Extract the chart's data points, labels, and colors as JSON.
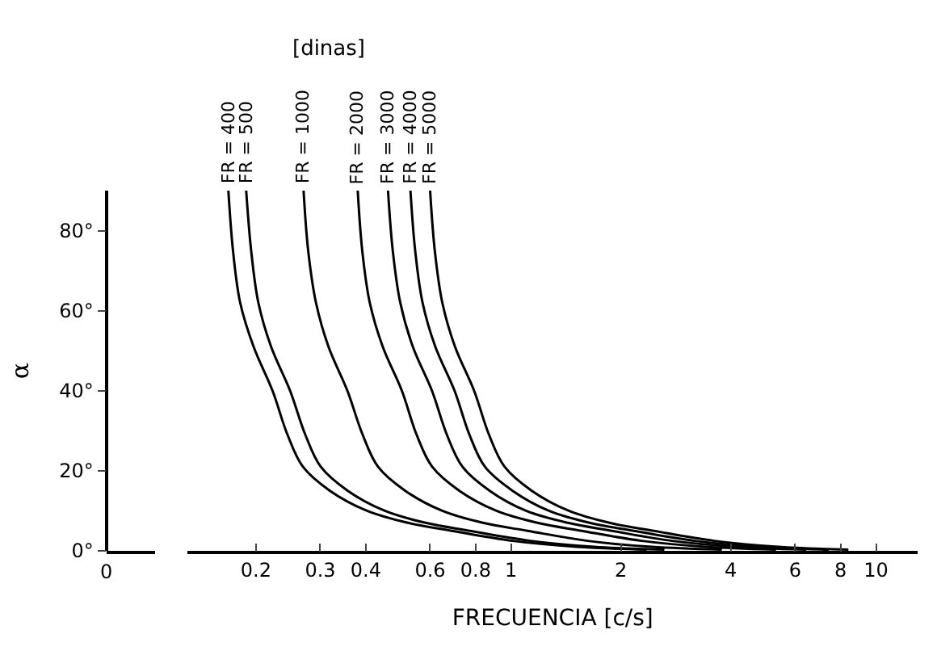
{
  "chart_data": {
    "type": "line",
    "xlabel": "FRECUENCIA [c/s]",
    "ylabel": "α",
    "legend_title": "[dinas]",
    "log": "x",
    "grid": false,
    "legend": false,
    "marker": "none",
    "line_style": "solid",
    "xlim": [
      0.13,
      13
    ],
    "ylim": [
      0,
      90
    ],
    "annotations": [
      "0"
    ],
    "xticks": [
      0.2,
      0.3,
      0.4,
      0.6,
      0.8,
      1,
      2,
      4,
      6,
      8,
      10
    ],
    "yticks": [
      {
        "value": 0,
        "label": "0°"
      },
      {
        "value": 20,
        "label": "20°"
      },
      {
        "value": 40,
        "label": "40°"
      },
      {
        "value": 60,
        "label": "60°"
      },
      {
        "value": 80,
        "label": "80°"
      }
    ],
    "series": [
      {
        "name": "FR = 400",
        "color": "#000000",
        "x": [
          0.168,
          0.173,
          0.181,
          0.197,
          0.222,
          0.244,
          0.269,
          0.319,
          0.403,
          0.521,
          0.689,
          1.01,
          1.51,
          2.35
        ],
        "values": [
          90,
          75,
          62,
          51,
          40,
          29,
          21,
          15,
          10,
          7,
          5,
          2.5,
          1,
          0.3
        ]
      },
      {
        "name": "FR = 500",
        "color": "#000000",
        "x": [
          0.188,
          0.194,
          0.203,
          0.22,
          0.248,
          0.273,
          0.301,
          0.357,
          0.451,
          0.583,
          0.771,
          1.13,
          1.69,
          2.63
        ],
        "values": [
          90,
          75,
          62,
          51,
          40,
          29,
          21,
          15,
          10,
          7,
          5,
          2.5,
          1,
          0.3
        ]
      },
      {
        "name": "FR = 1000",
        "color": "#000000",
        "x": [
          0.27,
          0.278,
          0.292,
          0.316,
          0.356,
          0.392,
          0.432,
          0.513,
          0.648,
          0.837,
          1.11,
          1.62,
          2.43,
          3.78
        ],
        "values": [
          90,
          75,
          62,
          51,
          40,
          29,
          21,
          15,
          10,
          7,
          5,
          2.5,
          1,
          0.3
        ]
      },
      {
        "name": "FR = 2000",
        "color": "#000000",
        "x": [
          0.38,
          0.391,
          0.41,
          0.445,
          0.502,
          0.551,
          0.608,
          0.722,
          0.912,
          1.18,
          1.56,
          2.28,
          3.42,
          5.32
        ],
        "values": [
          90,
          75,
          62,
          51,
          40,
          29,
          21,
          15,
          10,
          7,
          5,
          2.5,
          1,
          0.3
        ]
      },
      {
        "name": "FR = 3000",
        "color": "#000000",
        "x": [
          0.46,
          0.474,
          0.497,
          0.538,
          0.607,
          0.667,
          0.736,
          0.874,
          1.1,
          1.43,
          1.89,
          2.76,
          4.14,
          6.44
        ],
        "values": [
          90,
          75,
          62,
          51,
          40,
          29,
          21,
          15,
          10,
          7,
          5,
          2.5,
          1,
          0.3
        ]
      },
      {
        "name": "FR = 4000",
        "color": "#000000",
        "x": [
          0.53,
          0.546,
          0.572,
          0.62,
          0.7,
          0.769,
          0.848,
          1.01,
          1.27,
          1.64,
          2.17,
          3.18,
          4.77,
          7.42
        ],
        "values": [
          90,
          75,
          62,
          51,
          40,
          29,
          21,
          15,
          10,
          7,
          5,
          2.5,
          1,
          0.3
        ]
      },
      {
        "name": "FR = 5000",
        "color": "#000000",
        "x": [
          0.6,
          0.618,
          0.648,
          0.702,
          0.792,
          0.87,
          0.96,
          1.14,
          1.44,
          1.86,
          2.46,
          3.6,
          5.4,
          8.4
        ],
        "values": [
          90,
          75,
          62,
          51,
          40,
          29,
          21,
          15,
          10,
          7,
          5,
          2.5,
          1,
          0.3
        ]
      }
    ]
  }
}
